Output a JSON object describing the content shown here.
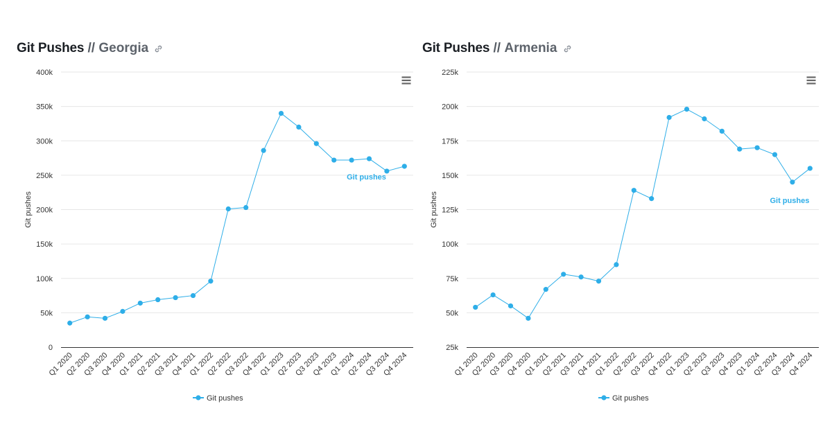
{
  "colors": {
    "series": "#2eaee8",
    "grid": "#e6e6e6",
    "axis": "#333333"
  },
  "chart_data": [
    {
      "type": "line",
      "title": "Git Pushes",
      "subtitle": "Georgia",
      "ylabel": "Git pushes",
      "xlabel": "",
      "ylim": [
        0,
        400000
      ],
      "yticks": [
        0,
        50000,
        100000,
        150000,
        200000,
        250000,
        300000,
        350000,
        400000
      ],
      "ytick_labels": [
        "0",
        "50k",
        "100k",
        "150k",
        "200k",
        "250k",
        "300k",
        "350k",
        "400k"
      ],
      "grid": true,
      "legend": "bottom-center",
      "categories": [
        "Q1 2020",
        "Q2 2020",
        "Q3 2020",
        "Q4 2020",
        "Q1 2021",
        "Q2 2021",
        "Q3 2021",
        "Q4 2021",
        "Q1 2022",
        "Q2 2022",
        "Q3 2022",
        "Q4 2022",
        "Q1 2023",
        "Q2 2023",
        "Q3 2023",
        "Q4 2023",
        "Q1 2024",
        "Q2 2024",
        "Q3 2024",
        "Q4 2024"
      ],
      "series": [
        {
          "name": "Git pushes",
          "values": [
            35000,
            44000,
            42000,
            52000,
            64000,
            69000,
            72000,
            75000,
            96000,
            201000,
            203000,
            286000,
            340000,
            320000,
            296000,
            272000,
            272000,
            274000,
            256000,
            263000
          ]
        }
      ],
      "series_label": "Git pushes"
    },
    {
      "type": "line",
      "title": "Git Pushes",
      "subtitle": "Armenia",
      "ylabel": "Git pushes",
      "xlabel": "",
      "ylim": [
        25000,
        225000
      ],
      "yticks": [
        25000,
        50000,
        75000,
        100000,
        125000,
        150000,
        175000,
        200000,
        225000
      ],
      "ytick_labels": [
        "25k",
        "50k",
        "75k",
        "100k",
        "125k",
        "150k",
        "175k",
        "200k",
        "225k"
      ],
      "grid": true,
      "legend": "bottom-center",
      "categories": [
        "Q1 2020",
        "Q2 2020",
        "Q3 2020",
        "Q4 2020",
        "Q1 2021",
        "Q2 2021",
        "Q3 2021",
        "Q4 2021",
        "Q1 2022",
        "Q2 2022",
        "Q3 2022",
        "Q4 2022",
        "Q1 2023",
        "Q2 2023",
        "Q3 2023",
        "Q4 2023",
        "Q1 2024",
        "Q2 2024",
        "Q3 2024",
        "Q4 2024"
      ],
      "series": [
        {
          "name": "Git pushes",
          "values": [
            54000,
            63000,
            55000,
            46000,
            67000,
            78000,
            76000,
            73000,
            85000,
            139000,
            133000,
            192000,
            198000,
            191000,
            182000,
            169000,
            170000,
            165000,
            145000,
            155000
          ]
        }
      ],
      "series_label": "Git pushes"
    }
  ]
}
